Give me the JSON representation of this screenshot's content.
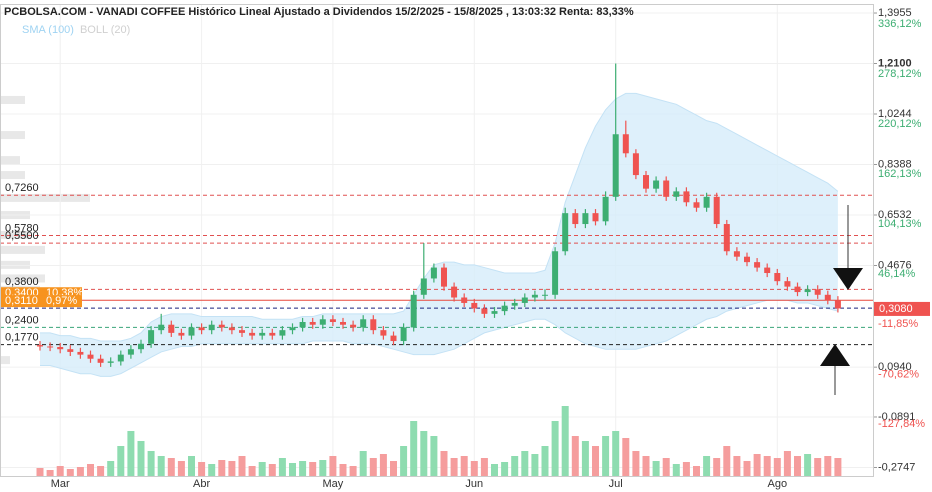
{
  "chart_data": {
    "type": "candlestick",
    "title": "PCBOLSA.COM - VANADI COFFEE Histórico Lineal Ajustado a Dividendos 15/2/2025 - 15/8/2025 , 13:03:32 Renta: 83,33%",
    "indicators": [
      {
        "name": "SMA (100)",
        "color": "#9fd3f2"
      },
      {
        "name": "BOLL (20)",
        "color": "#d0d0d0"
      }
    ],
    "categories": [
      null,
      null,
      "Mar",
      null,
      null,
      null,
      null,
      null,
      null,
      null,
      null,
      null,
      null,
      null,
      null,
      null,
      "Abr",
      null,
      null,
      null,
      null,
      null,
      null,
      null,
      null,
      null,
      null,
      null,
      null,
      "May",
      null,
      null,
      null,
      null,
      null,
      null,
      null,
      null,
      null,
      null,
      null,
      null,
      null,
      "Jun",
      null,
      null,
      null,
      null,
      null,
      null,
      null,
      null,
      null,
      null,
      null,
      null,
      null,
      "Jul",
      null,
      null,
      null,
      null,
      null,
      null,
      null,
      null,
      null,
      null,
      null,
      null,
      null,
      null,
      null,
      "Ago",
      null,
      null,
      null,
      null,
      null,
      null
    ],
    "candles": {
      "open": [
        0.175,
        0.17,
        0.168,
        0.16,
        0.15,
        0.14,
        0.125,
        0.11,
        0.115,
        0.14,
        0.16,
        0.18,
        0.23,
        0.25,
        0.22,
        0.21,
        0.24,
        0.23,
        0.25,
        0.24,
        0.23,
        0.22,
        0.21,
        0.22,
        0.21,
        0.23,
        0.24,
        0.26,
        0.25,
        0.27,
        0.26,
        0.25,
        0.24,
        0.27,
        0.23,
        0.21,
        0.19,
        0.24,
        0.36,
        0.42,
        0.46,
        0.39,
        0.35,
        0.33,
        0.31,
        0.29,
        0.3,
        0.32,
        0.33,
        0.35,
        0.36,
        0.36,
        0.52,
        0.66,
        0.62,
        0.66,
        0.63,
        0.72,
        0.95,
        0.88,
        0.8,
        0.75,
        0.78,
        0.72,
        0.74,
        0.7,
        0.68,
        0.72,
        0.62,
        0.52,
        0.5,
        0.48,
        0.46,
        0.44,
        0.41,
        0.39,
        0.37,
        0.38,
        0.36,
        0.34
      ],
      "high": [
        0.19,
        0.185,
        0.183,
        0.175,
        0.165,
        0.155,
        0.14,
        0.13,
        0.155,
        0.175,
        0.195,
        0.245,
        0.29,
        0.265,
        0.235,
        0.255,
        0.255,
        0.265,
        0.265,
        0.255,
        0.245,
        0.235,
        0.235,
        0.235,
        0.245,
        0.255,
        0.275,
        0.275,
        0.285,
        0.285,
        0.275,
        0.265,
        0.285,
        0.285,
        0.245,
        0.225,
        0.255,
        0.375,
        0.55,
        0.475,
        0.475,
        0.405,
        0.365,
        0.345,
        0.325,
        0.315,
        0.335,
        0.345,
        0.365,
        0.375,
        0.38,
        0.535,
        0.68,
        0.675,
        0.675,
        0.675,
        0.74,
        1.21,
        1.0,
        0.895,
        0.815,
        0.795,
        0.795,
        0.755,
        0.755,
        0.715,
        0.735,
        0.735,
        0.635,
        0.535,
        0.515,
        0.495,
        0.475,
        0.455,
        0.425,
        0.405,
        0.395,
        0.395,
        0.375,
        0.355
      ],
      "low": [
        0.155,
        0.153,
        0.145,
        0.135,
        0.125,
        0.11,
        0.095,
        0.095,
        0.1,
        0.125,
        0.145,
        0.165,
        0.215,
        0.205,
        0.195,
        0.195,
        0.215,
        0.215,
        0.225,
        0.215,
        0.205,
        0.195,
        0.195,
        0.195,
        0.195,
        0.215,
        0.225,
        0.235,
        0.235,
        0.245,
        0.235,
        0.225,
        0.225,
        0.215,
        0.195,
        0.175,
        0.175,
        0.225,
        0.345,
        0.405,
        0.375,
        0.335,
        0.315,
        0.295,
        0.275,
        0.275,
        0.285,
        0.305,
        0.315,
        0.335,
        0.34,
        0.345,
        0.505,
        0.605,
        0.605,
        0.615,
        0.615,
        0.705,
        0.865,
        0.785,
        0.735,
        0.735,
        0.705,
        0.705,
        0.685,
        0.665,
        0.665,
        0.605,
        0.505,
        0.485,
        0.465,
        0.445,
        0.425,
        0.395,
        0.375,
        0.355,
        0.355,
        0.345,
        0.325,
        0.295
      ],
      "close": [
        0.17,
        0.168,
        0.16,
        0.15,
        0.14,
        0.125,
        0.11,
        0.115,
        0.14,
        0.16,
        0.18,
        0.23,
        0.25,
        0.22,
        0.21,
        0.24,
        0.23,
        0.25,
        0.24,
        0.23,
        0.22,
        0.21,
        0.22,
        0.21,
        0.23,
        0.24,
        0.26,
        0.25,
        0.27,
        0.26,
        0.25,
        0.24,
        0.27,
        0.23,
        0.21,
        0.19,
        0.24,
        0.36,
        0.42,
        0.46,
        0.39,
        0.35,
        0.33,
        0.31,
        0.29,
        0.3,
        0.32,
        0.33,
        0.35,
        0.36,
        0.36,
        0.52,
        0.66,
        0.62,
        0.66,
        0.63,
        0.72,
        0.95,
        0.88,
        0.8,
        0.75,
        0.78,
        0.72,
        0.74,
        0.7,
        0.68,
        0.72,
        0.62,
        0.52,
        0.5,
        0.48,
        0.46,
        0.44,
        0.41,
        0.39,
        0.37,
        0.38,
        0.36,
        0.34,
        0.31
      ],
      "up_color": "#3dae72",
      "down_color": "#ef5350"
    },
    "volume": {
      "values": [
        8,
        6,
        10,
        7,
        9,
        12,
        10,
        15,
        30,
        45,
        35,
        25,
        20,
        18,
        15,
        20,
        14,
        12,
        16,
        15,
        20,
        10,
        14,
        12,
        18,
        13,
        15,
        14,
        16,
        20,
        12,
        10,
        25,
        18,
        22,
        15,
        30,
        55,
        45,
        40,
        25,
        18,
        20,
        15,
        18,
        12,
        14,
        20,
        25,
        22,
        30,
        55,
        70,
        40,
        35,
        30,
        40,
        45,
        38,
        25,
        20,
        15,
        18,
        12,
        14,
        10,
        20,
        18,
        30,
        20,
        15,
        22,
        20,
        18,
        25,
        20,
        22,
        18,
        20,
        18
      ],
      "vlim": [
        0,
        100
      ],
      "up_color": "#8edcb0",
      "down_color": "#f59d9d"
    },
    "band": {
      "upper": [
        0.22,
        0.22,
        0.21,
        0.21,
        0.2,
        0.2,
        0.19,
        0.19,
        0.19,
        0.2,
        0.22,
        0.26,
        0.28,
        0.29,
        0.29,
        0.29,
        0.28,
        0.28,
        0.28,
        0.28,
        0.28,
        0.28,
        0.27,
        0.27,
        0.27,
        0.27,
        0.28,
        0.28,
        0.29,
        0.29,
        0.29,
        0.29,
        0.29,
        0.29,
        0.29,
        0.29,
        0.3,
        0.36,
        0.42,
        0.47,
        0.48,
        0.48,
        0.47,
        0.47,
        0.46,
        0.45,
        0.44,
        0.44,
        0.44,
        0.44,
        0.45,
        0.55,
        0.7,
        0.8,
        0.9,
        0.98,
        1.04,
        1.08,
        1.1,
        1.1,
        1.09,
        1.08,
        1.07,
        1.06,
        1.04,
        1.02,
        1.0,
        0.99,
        0.97,
        0.95,
        0.93,
        0.91,
        0.89,
        0.87,
        0.85,
        0.83,
        0.81,
        0.79,
        0.77,
        0.74
      ],
      "lower": [
        0.1,
        0.1,
        0.09,
        0.08,
        0.07,
        0.07,
        0.06,
        0.06,
        0.07,
        0.09,
        0.11,
        0.13,
        0.15,
        0.16,
        0.17,
        0.17,
        0.18,
        0.18,
        0.18,
        0.18,
        0.18,
        0.18,
        0.18,
        0.18,
        0.18,
        0.18,
        0.18,
        0.19,
        0.19,
        0.19,
        0.19,
        0.18,
        0.18,
        0.18,
        0.17,
        0.16,
        0.15,
        0.14,
        0.14,
        0.14,
        0.15,
        0.16,
        0.18,
        0.2,
        0.22,
        0.23,
        0.24,
        0.25,
        0.26,
        0.27,
        0.27,
        0.25,
        0.22,
        0.2,
        0.18,
        0.17,
        0.16,
        0.16,
        0.16,
        0.16,
        0.17,
        0.18,
        0.19,
        0.21,
        0.23,
        0.25,
        0.27,
        0.28,
        0.3,
        0.31,
        0.32,
        0.33,
        0.34,
        0.34,
        0.34,
        0.33,
        0.33,
        0.32,
        0.31,
        0.3
      ],
      "color": "#d6ecfa"
    },
    "levels": [
      {
        "value": 0.726,
        "label": "0,7260",
        "color": "#e05050",
        "dashed": true
      },
      {
        "value": 0.578,
        "label": "0,5780",
        "color": "#e05050",
        "dashed": true
      },
      {
        "value": 0.55,
        "label": "0,5500",
        "color": "#e05050",
        "dashed": true
      },
      {
        "value": 0.38,
        "label": "0,3800",
        "color": "#e05050",
        "dashed": true
      },
      {
        "value": 0.34,
        "label": "0,3400",
        "pct": "10,38%",
        "color": "#e8483c",
        "dashed": false,
        "box": "#f7931e"
      },
      {
        "value": 0.311,
        "label": "0,3110",
        "pct": "0,97%",
        "color": "#1a237e",
        "dashed": true,
        "box": "#f7931e"
      },
      {
        "value": 0.24,
        "label": "0,2400",
        "color": "#3aa57a",
        "dashed": true
      },
      {
        "value": 0.177,
        "label": "0,1770",
        "color": "#222222",
        "dashed": true
      }
    ],
    "last_price": {
      "value": 0.308,
      "label": "0,3080",
      "color": "#ef5350"
    },
    "volume_profile": {
      "prices": [
        1.076,
        0.947,
        0.855,
        0.8,
        0.716,
        0.653,
        0.58,
        0.525,
        0.47,
        0.42,
        0.378,
        0.12
      ],
      "values": [
        25,
        25,
        20,
        25,
        90,
        30,
        30,
        45,
        30,
        45,
        40,
        10
      ],
      "color": "#e8e8e8"
    },
    "ylim": [
      -0.306,
      1.425
    ],
    "yticks": [
      {
        "value": 1.3955,
        "label": "1,3955"
      },
      {
        "value": 1.21,
        "label": "1,2100"
      },
      {
        "value": 1.0244,
        "label": "1,0244"
      },
      {
        "value": 0.8388,
        "label": "0,8388"
      },
      {
        "value": 0.6532,
        "label": "0,6532"
      },
      {
        "value": 0.4676,
        "label": "0,4676"
      },
      {
        "value": 0.094,
        "label": "0,0940"
      },
      {
        "value": -0.0891,
        "label": "-0,0891"
      },
      {
        "value": -0.2747,
        "label": "-0,2747"
      }
    ],
    "y2lim": [
      -188.15,
      358.16
    ],
    "y2ticks": [
      {
        "value": 336.12,
        "label": "336,12%"
      },
      {
        "value": 278.12,
        "label": "278,12%"
      },
      {
        "value": 220.12,
        "label": "220,12%"
      },
      {
        "value": 162.13,
        "label": "162,13%"
      },
      {
        "value": 104.13,
        "label": "104,13%"
      },
      {
        "value": 46.14,
        "label": "46,14%"
      },
      {
        "value": -11.85,
        "label": "-11,85%"
      },
      {
        "value": -70.62,
        "label": "-70,62%"
      },
      {
        "value": -127.84,
        "label": "-127,84%"
      }
    ],
    "grid": true
  }
}
